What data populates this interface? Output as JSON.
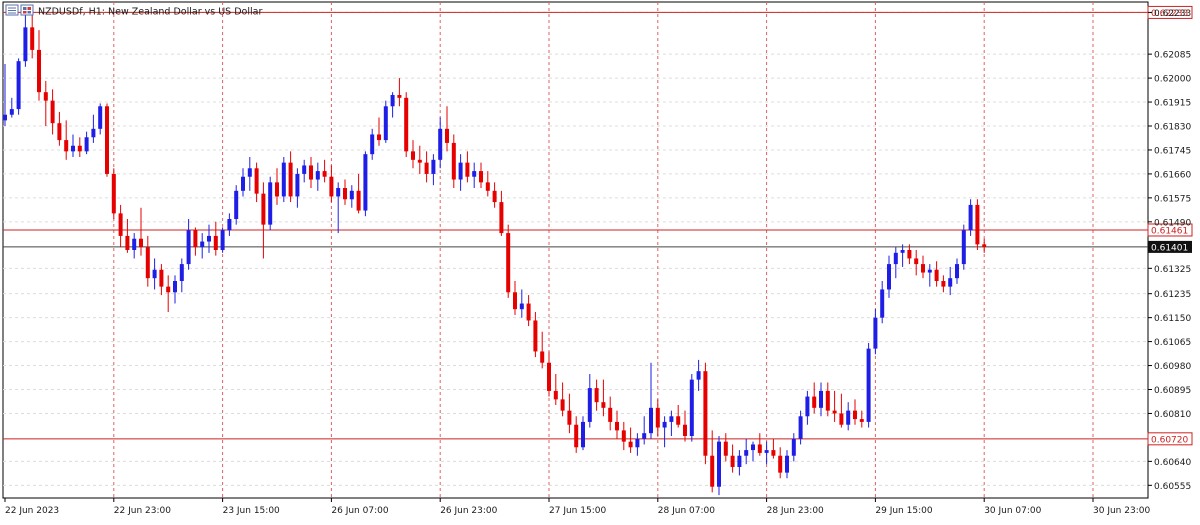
{
  "chart_data": {
    "type": "candlestick",
    "title": "NZDUSDf, H1:  New Zealand Dollar vs US Dollar",
    "y_ticks": [
      "0.62233",
      "0.62085",
      "0.62000",
      "0.61915",
      "0.61830",
      "0.61745",
      "0.61660",
      "0.61575",
      "0.61490",
      "0.61325",
      "0.61235",
      "0.61150",
      "0.61065",
      "0.60980",
      "0.60895",
      "0.60810",
      "0.60640",
      "0.60555"
    ],
    "x_ticks": [
      "22 Jun 2023",
      "22 Jun 23:00",
      "23 Jun 15:00",
      "26 Jun 07:00",
      "26 Jun 23:00",
      "27 Jun 15:00",
      "28 Jun 07:00",
      "28 Jun 23:00",
      "29 Jun 15:00",
      "30 Jun 07:00",
      "30 Jun 23:00"
    ],
    "ylim": [
      0.6051,
      0.6227
    ],
    "grid": true,
    "colors": {
      "up": "#1e1ee6",
      "down": "#e60000",
      "grid": "#dcdcdc",
      "separator": "#e06060",
      "level": "#cc2222",
      "current": "#444444"
    },
    "levels": [
      {
        "name": "upper",
        "value": "0.62233",
        "price": 0.62233
      },
      {
        "name": "resistance",
        "value": "0.61461",
        "price": 0.61461
      },
      {
        "name": "support",
        "value": "0.60720",
        "price": 0.6072
      }
    ],
    "current_price": {
      "value": "0.61401",
      "price": 0.61401
    },
    "candles": [
      [
        0.6185,
        0.6205,
        0.6183,
        0.6187
      ],
      [
        0.6187,
        0.6193,
        0.6186,
        0.6189
      ],
      [
        0.6189,
        0.6207,
        0.6187,
        0.6206
      ],
      [
        0.6206,
        0.6224,
        0.6204,
        0.6218
      ],
      [
        0.6218,
        0.6225,
        0.6207,
        0.621
      ],
      [
        0.621,
        0.6217,
        0.6192,
        0.6195
      ],
      [
        0.6195,
        0.6199,
        0.6183,
        0.6192
      ],
      [
        0.6192,
        0.6196,
        0.618,
        0.6184
      ],
      [
        0.6184,
        0.6188,
        0.6176,
        0.6178
      ],
      [
        0.6178,
        0.6185,
        0.6171,
        0.6174
      ],
      [
        0.6174,
        0.618,
        0.6172,
        0.6176
      ],
      [
        0.6176,
        0.6179,
        0.6172,
        0.6174
      ],
      [
        0.6174,
        0.6181,
        0.6173,
        0.6179
      ],
      [
        0.6179,
        0.6187,
        0.6177,
        0.6182
      ],
      [
        0.6182,
        0.6191,
        0.618,
        0.619
      ],
      [
        0.619,
        0.6191,
        0.6165,
        0.6166
      ],
      [
        0.6166,
        0.6168,
        0.615,
        0.6152
      ],
      [
        0.6152,
        0.6155,
        0.614,
        0.6144
      ],
      [
        0.6144,
        0.615,
        0.6138,
        0.6139
      ],
      [
        0.6139,
        0.6145,
        0.6136,
        0.6143
      ],
      [
        0.6143,
        0.6154,
        0.6137,
        0.614
      ],
      [
        0.614,
        0.6144,
        0.6126,
        0.6129
      ],
      [
        0.6129,
        0.6136,
        0.6125,
        0.6132
      ],
      [
        0.6132,
        0.6134,
        0.6123,
        0.6126
      ],
      [
        0.6126,
        0.613,
        0.6117,
        0.6124
      ],
      [
        0.6124,
        0.613,
        0.612,
        0.6128
      ],
      [
        0.6128,
        0.6136,
        0.6124,
        0.6134
      ],
      [
        0.6134,
        0.615,
        0.6132,
        0.6146
      ],
      [
        0.6146,
        0.6147,
        0.6137,
        0.614
      ],
      [
        0.614,
        0.6145,
        0.6136,
        0.6142
      ],
      [
        0.6142,
        0.6148,
        0.6138,
        0.6144
      ],
      [
        0.6144,
        0.6149,
        0.6137,
        0.6139
      ],
      [
        0.6139,
        0.6147,
        0.6138,
        0.6146
      ],
      [
        0.6146,
        0.6152,
        0.6144,
        0.615
      ],
      [
        0.615,
        0.6162,
        0.6148,
        0.616
      ],
      [
        0.616,
        0.6168,
        0.6158,
        0.6165
      ],
      [
        0.6165,
        0.6172,
        0.616,
        0.6168
      ],
      [
        0.6168,
        0.617,
        0.6156,
        0.6159
      ],
      [
        0.6159,
        0.6163,
        0.6136,
        0.6148
      ],
      [
        0.6148,
        0.6165,
        0.6146,
        0.6163
      ],
      [
        0.6163,
        0.6168,
        0.6155,
        0.6158
      ],
      [
        0.6158,
        0.6172,
        0.6156,
        0.617
      ],
      [
        0.617,
        0.6174,
        0.6156,
        0.6158
      ],
      [
        0.6158,
        0.6168,
        0.6154,
        0.6166
      ],
      [
        0.6166,
        0.6171,
        0.6163,
        0.6169
      ],
      [
        0.6169,
        0.6172,
        0.6161,
        0.6164
      ],
      [
        0.6164,
        0.617,
        0.616,
        0.6167
      ],
      [
        0.6167,
        0.6171,
        0.6163,
        0.6165
      ],
      [
        0.6165,
        0.6169,
        0.6156,
        0.6158
      ],
      [
        0.6158,
        0.6163,
        0.6145,
        0.6161
      ],
      [
        0.6161,
        0.6164,
        0.6155,
        0.6157
      ],
      [
        0.6157,
        0.6162,
        0.6154,
        0.616
      ],
      [
        0.616,
        0.6166,
        0.6152,
        0.6153
      ],
      [
        0.6153,
        0.6174,
        0.6151,
        0.6173
      ],
      [
        0.6173,
        0.6182,
        0.6171,
        0.618
      ],
      [
        0.618,
        0.6186,
        0.6176,
        0.6178
      ],
      [
        0.6178,
        0.6192,
        0.6177,
        0.619
      ],
      [
        0.619,
        0.6195,
        0.6186,
        0.6194
      ],
      [
        0.6194,
        0.62,
        0.619,
        0.6193
      ],
      [
        0.6193,
        0.6195,
        0.6172,
        0.6174
      ],
      [
        0.6174,
        0.6178,
        0.6168,
        0.6171
      ],
      [
        0.6171,
        0.6176,
        0.6166,
        0.617
      ],
      [
        0.617,
        0.6174,
        0.6163,
        0.6166
      ],
      [
        0.6166,
        0.6173,
        0.6162,
        0.6171
      ],
      [
        0.6171,
        0.6186,
        0.6168,
        0.6182
      ],
      [
        0.6182,
        0.619,
        0.6174,
        0.6177
      ],
      [
        0.6177,
        0.618,
        0.6161,
        0.6164
      ],
      [
        0.6164,
        0.6173,
        0.616,
        0.617
      ],
      [
        0.617,
        0.6174,
        0.6163,
        0.6165
      ],
      [
        0.6165,
        0.617,
        0.6161,
        0.6167
      ],
      [
        0.6167,
        0.617,
        0.6161,
        0.6163
      ],
      [
        0.6163,
        0.6167,
        0.6158,
        0.616
      ],
      [
        0.616,
        0.6163,
        0.6154,
        0.6156
      ],
      [
        0.6156,
        0.616,
        0.6144,
        0.6145
      ],
      [
        0.6145,
        0.6148,
        0.6122,
        0.6124
      ],
      [
        0.6124,
        0.6128,
        0.6116,
        0.6118
      ],
      [
        0.6118,
        0.6125,
        0.6115,
        0.612
      ],
      [
        0.612,
        0.6123,
        0.6112,
        0.6114
      ],
      [
        0.6114,
        0.6117,
        0.6101,
        0.6103
      ],
      [
        0.6103,
        0.611,
        0.6097,
        0.6099
      ],
      [
        0.6099,
        0.6103,
        0.6087,
        0.6089
      ],
      [
        0.6089,
        0.6095,
        0.6084,
        0.6086
      ],
      [
        0.6086,
        0.6092,
        0.608,
        0.6082
      ],
      [
        0.6082,
        0.6088,
        0.6074,
        0.6077
      ],
      [
        0.6077,
        0.608,
        0.6067,
        0.6069
      ],
      [
        0.6069,
        0.608,
        0.6068,
        0.6078
      ],
      [
        0.6078,
        0.6095,
        0.6076,
        0.609
      ],
      [
        0.609,
        0.6093,
        0.6082,
        0.6085
      ],
      [
        0.6085,
        0.6093,
        0.608,
        0.6083
      ],
      [
        0.6083,
        0.6087,
        0.6075,
        0.6078
      ],
      [
        0.6078,
        0.6082,
        0.6072,
        0.6075
      ],
      [
        0.6075,
        0.6078,
        0.6068,
        0.6071
      ],
      [
        0.6071,
        0.6076,
        0.6067,
        0.6069
      ],
      [
        0.6069,
        0.6074,
        0.6066,
        0.6072
      ],
      [
        0.6072,
        0.608,
        0.607,
        0.6074
      ],
      [
        0.6074,
        0.6099,
        0.6072,
        0.6083
      ],
      [
        0.6083,
        0.6086,
        0.6073,
        0.6076
      ],
      [
        0.6076,
        0.608,
        0.6069,
        0.6078
      ],
      [
        0.6078,
        0.6082,
        0.6073,
        0.608
      ],
      [
        0.608,
        0.6084,
        0.6076,
        0.6077
      ],
      [
        0.6077,
        0.6082,
        0.6071,
        0.6073
      ],
      [
        0.6073,
        0.6095,
        0.6071,
        0.6093
      ],
      [
        0.6093,
        0.61,
        0.6089,
        0.6096
      ],
      [
        0.6096,
        0.6099,
        0.6063,
        0.6066
      ],
      [
        0.6066,
        0.6075,
        0.6053,
        0.6055
      ],
      [
        0.6055,
        0.6073,
        0.6052,
        0.6071
      ],
      [
        0.6071,
        0.6074,
        0.6064,
        0.6066
      ],
      [
        0.6066,
        0.607,
        0.606,
        0.6062
      ],
      [
        0.6062,
        0.6068,
        0.6059,
        0.6066
      ],
      [
        0.6066,
        0.6072,
        0.6063,
        0.6068
      ],
      [
        0.6068,
        0.6071,
        0.6064,
        0.607
      ],
      [
        0.607,
        0.6074,
        0.6066,
        0.6067
      ],
      [
        0.6067,
        0.6071,
        0.6063,
        0.6068
      ],
      [
        0.6068,
        0.6072,
        0.6065,
        0.6066
      ],
      [
        0.6066,
        0.6069,
        0.6058,
        0.606
      ],
      [
        0.606,
        0.6068,
        0.6058,
        0.6066
      ],
      [
        0.6066,
        0.6074,
        0.6064,
        0.6072
      ],
      [
        0.6072,
        0.6082,
        0.607,
        0.608
      ],
      [
        0.608,
        0.6089,
        0.6077,
        0.6087
      ],
      [
        0.6087,
        0.6092,
        0.6081,
        0.6083
      ],
      [
        0.6083,
        0.6092,
        0.608,
        0.6089
      ],
      [
        0.6089,
        0.6092,
        0.608,
        0.6082
      ],
      [
        0.6082,
        0.6089,
        0.6078,
        0.6081
      ],
      [
        0.6081,
        0.6088,
        0.6076,
        0.6077
      ],
      [
        0.6077,
        0.6085,
        0.6075,
        0.6082
      ],
      [
        0.6082,
        0.6086,
        0.6077,
        0.6079
      ],
      [
        0.6079,
        0.6082,
        0.6076,
        0.6078
      ],
      [
        0.6078,
        0.6106,
        0.6076,
        0.6104
      ],
      [
        0.6104,
        0.6118,
        0.6102,
        0.6115
      ],
      [
        0.6115,
        0.6128,
        0.6113,
        0.6125
      ],
      [
        0.6125,
        0.6137,
        0.6122,
        0.6134
      ],
      [
        0.6134,
        0.614,
        0.6129,
        0.6138
      ],
      [
        0.6138,
        0.6141,
        0.6133,
        0.6139
      ],
      [
        0.6139,
        0.6141,
        0.6134,
        0.6136
      ],
      [
        0.6136,
        0.6139,
        0.613,
        0.6134
      ],
      [
        0.6134,
        0.6137,
        0.6129,
        0.6131
      ],
      [
        0.6131,
        0.6134,
        0.6126,
        0.6132
      ],
      [
        0.6132,
        0.6135,
        0.6126,
        0.6128
      ],
      [
        0.6128,
        0.613,
        0.6124,
        0.6126
      ],
      [
        0.6126,
        0.6133,
        0.6123,
        0.6129
      ],
      [
        0.6129,
        0.6136,
        0.6127,
        0.6134
      ],
      [
        0.6134,
        0.6148,
        0.6132,
        0.6146
      ],
      [
        0.6146,
        0.6157,
        0.6144,
        0.6155
      ],
      [
        0.6155,
        0.6157,
        0.6139,
        0.6141
      ],
      [
        0.6141,
        0.6143,
        0.6138,
        0.614
      ]
    ]
  }
}
